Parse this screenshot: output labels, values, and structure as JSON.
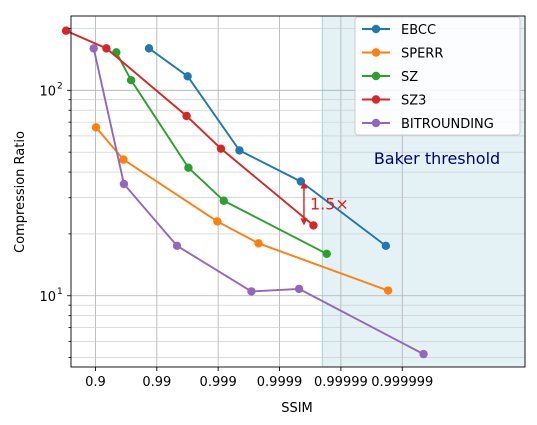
{
  "chart_data": {
    "type": "line",
    "xlabel": "SSIM",
    "ylabel": "Compression Ratio",
    "x_scale": "log of (1 - SSIM)",
    "xlim": [
      0.75,
      0.99999999
    ],
    "ylim": [
      4.5,
      230
    ],
    "y_scale": "log",
    "grid": true,
    "legend_position": "top-right",
    "x_ticks": [
      {
        "value": 0.9,
        "label": "0.9"
      },
      {
        "value": 0.99,
        "label": "0.99"
      },
      {
        "value": 0.999,
        "label": "0.999"
      },
      {
        "value": 0.9999,
        "label": "0.9999"
      },
      {
        "value": 0.99999,
        "label": "0.99999"
      },
      {
        "value": 0.999999,
        "label": "0.999999"
      }
    ],
    "y_ticks": [
      {
        "value": 10,
        "label": "10",
        "exp": "1"
      },
      {
        "value": 100,
        "label": "10",
        "exp": "2"
      }
    ],
    "series": [
      {
        "name": "EBCC",
        "color": "#1f77b4",
        "x": [
          0.9866,
          0.99686,
          0.99955,
          0.999955,
          0.99999815
        ],
        "y": [
          160,
          117,
          51,
          36,
          17.5
        ]
      },
      {
        "name": "SPERR",
        "color": "#ff7f0e",
        "x": [
          0.9022,
          0.9651,
          0.99897,
          0.99978,
          0.9999983
        ],
        "y": [
          66,
          46,
          23,
          18,
          10.6
        ]
      },
      {
        "name": "SZ",
        "color": "#2ca02c",
        "x": [
          0.9543,
          0.9738,
          0.99695,
          0.99919,
          0.999983
        ],
        "y": [
          153,
          112,
          42,
          29,
          16
        ]
      },
      {
        "name": "SZ3",
        "color": "#d62728",
        "x": [
          0.6988,
          0.9338,
          0.99673,
          0.9991,
          0.999972
        ],
        "y": [
          195,
          160,
          75,
          52,
          22
        ]
      },
      {
        "name": "BITROUNDING",
        "color": "#9467bd",
        "x": [
          0.8934,
          0.9657,
          0.99532,
          0.999713,
          0.999952,
          0.99999955
        ],
        "y": [
          160,
          35,
          17.5,
          10.5,
          10.8,
          5.2
        ]
      }
    ],
    "annotations": {
      "baker_threshold": {
        "label": "Baker threshold",
        "x_start": 0.99998,
        "color": "#000080",
        "fill": "#e4f2f6",
        "line_color": "#add8e6"
      },
      "ratio_marker": {
        "label": "1.5×",
        "x": 0.99996,
        "y_top": 36,
        "y_bottom": 22,
        "color": "#e0201b"
      }
    }
  }
}
